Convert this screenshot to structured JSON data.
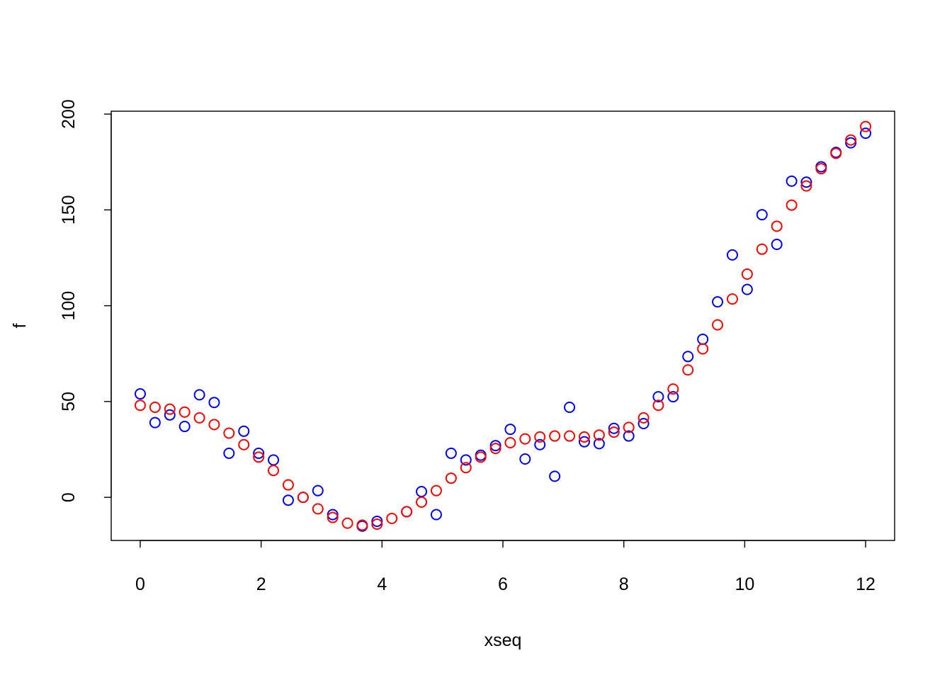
{
  "chart_data": {
    "type": "scatter",
    "title": "",
    "xlabel": "xseq",
    "ylabel": "f",
    "xlim": [
      -0.48,
      12.48
    ],
    "ylim": [
      -22.5,
      201.5
    ],
    "xticks": [
      0,
      2,
      4,
      6,
      8,
      10,
      12
    ],
    "yticks": [
      0,
      50,
      100,
      150,
      200
    ],
    "grid": false,
    "legend": "none",
    "x": [
      0,
      0.245,
      0.49,
      0.735,
      0.98,
      1.224,
      1.469,
      1.714,
      1.959,
      2.204,
      2.449,
      2.694,
      2.939,
      3.184,
      3.429,
      3.673,
      3.918,
      4.163,
      4.408,
      4.653,
      4.898,
      5.143,
      5.388,
      5.633,
      5.878,
      6.122,
      6.367,
      6.612,
      6.857,
      7.102,
      7.347,
      7.592,
      7.837,
      8.082,
      8.327,
      8.571,
      8.816,
      9.061,
      9.306,
      9.551,
      9.796,
      10.041,
      10.286,
      10.531,
      10.776,
      11.02,
      11.265,
      11.51,
      11.755,
      12
    ],
    "series": [
      {
        "color": "#0000ff",
        "values": [
          54,
          39,
          43,
          37,
          53.5,
          49.5,
          23,
          34.5,
          23,
          19.5,
          -1.5,
          0,
          3.5,
          -9,
          null,
          -15,
          -12.5,
          null,
          -7.5,
          3,
          -9,
          23,
          19.5,
          22,
          27,
          35.5,
          20,
          27.5,
          11,
          47,
          29,
          28,
          36,
          32,
          38.5,
          52.5,
          52.5,
          73.5,
          82.5,
          102,
          126.5,
          108.5,
          147.5,
          132,
          165,
          164.5,
          172.5,
          180,
          185,
          190
        ]
      },
      {
        "color": "#ff0000",
        "values": [
          48,
          47,
          46,
          44.5,
          41.5,
          38,
          33.5,
          27.5,
          21,
          14,
          6.5,
          0,
          -6,
          -10.5,
          -13.5,
          -14.5,
          -14,
          -11,
          -7.5,
          -2.5,
          3.5,
          10,
          15.5,
          21,
          25.5,
          28.5,
          30.5,
          31.5,
          32,
          32,
          31.5,
          32.5,
          34,
          36.5,
          41.5,
          48,
          56.5,
          66.5,
          77.5,
          90,
          103.5,
          116.5,
          129.5,
          141.5,
          152.5,
          162.5,
          171.5,
          179.5,
          186.5,
          193.5
        ]
      }
    ]
  }
}
